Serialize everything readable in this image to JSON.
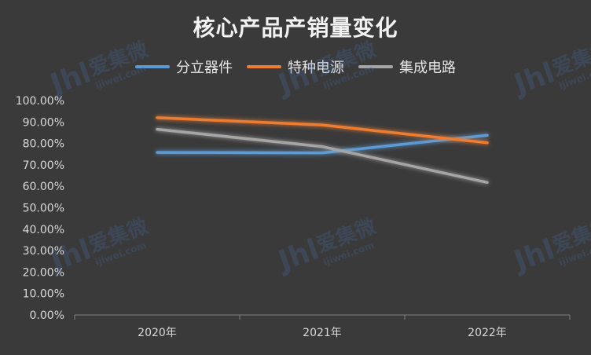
{
  "chart_data": {
    "type": "line",
    "title": "核心产品产销量变化",
    "categories": [
      "2020年",
      "2021年",
      "2022年"
    ],
    "series": [
      {
        "name": "分立器件",
        "color": "#5b9bd5",
        "values": [
          75.8,
          75.6,
          83.8
        ]
      },
      {
        "name": "特种电源",
        "color": "#ed7d31",
        "values": [
          92.0,
          88.6,
          80.3
        ]
      },
      {
        "name": "集成电路",
        "color": "#a5a5a5",
        "values": [
          86.6,
          78.5,
          61.8
        ]
      }
    ],
    "y_ticks": [
      "0.00%",
      "10.00%",
      "20.00%",
      "30.00%",
      "40.00%",
      "50.00%",
      "60.00%",
      "70.00%",
      "80.00%",
      "90.00%",
      "100.00%"
    ],
    "ylim": [
      0,
      100
    ],
    "y_unit": "%",
    "grid": false,
    "legend_position": "top",
    "background": "#3a3a3a"
  },
  "watermark": {
    "logo_text": "Jhl",
    "brand": "爱集微",
    "url": "ijiwei.com"
  }
}
